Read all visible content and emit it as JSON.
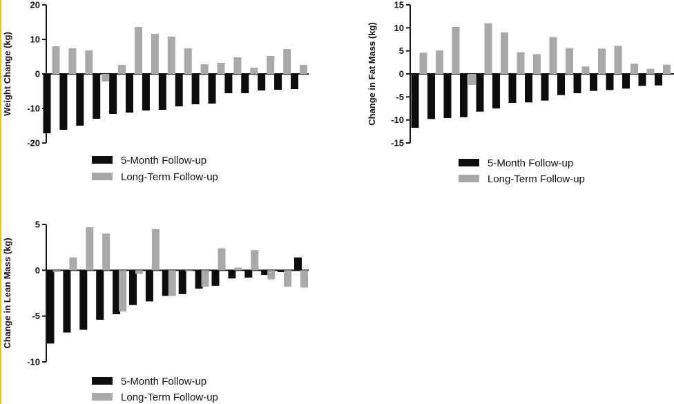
{
  "colors": {
    "five_month": "#0d0d0d",
    "long_term": "#a9a9a9",
    "axis": "#1a1a1a"
  },
  "chart_data": [
    {
      "type": "bar",
      "title": "",
      "xlabel": "",
      "ylabel": "Weight  Change (kg)",
      "ylim": [
        -20,
        20
      ],
      "yticks": [
        20,
        10,
        0,
        -10,
        -20
      ],
      "legend": {
        "position": "bottom",
        "entries": [
          "5-Month Follow-up",
          "Long-Term Follow-up"
        ]
      },
      "series": [
        {
          "name": "5-Month Follow-up",
          "values": [
            -17.2,
            -16.2,
            -15.0,
            -13.0,
            -11.6,
            -11.2,
            -10.6,
            -10.4,
            -9.4,
            -8.8,
            -8.6,
            -5.6,
            -5.6,
            -4.8,
            -4.6,
            -4.4
          ]
        },
        {
          "name": "Long-Term Follow-up",
          "values": [
            8.0,
            7.4,
            6.8,
            -2.2,
            2.6,
            13.6,
            11.6,
            10.8,
            7.4,
            2.8,
            3.2,
            4.8,
            1.8,
            5.2,
            7.2,
            2.6
          ]
        }
      ]
    },
    {
      "type": "bar",
      "title": "",
      "xlabel": "",
      "ylabel": "Change in Fat Mass (kg)",
      "ylim": [
        -15,
        15
      ],
      "yticks": [
        15,
        10,
        5,
        0,
        -5,
        -10,
        -15
      ],
      "legend": {
        "position": "bottom",
        "entries": [
          "5-Month Follow-up",
          "Long-Term Follow-up"
        ]
      },
      "series": [
        {
          "name": "5-Month Follow-up",
          "values": [
            -11.7,
            -9.8,
            -9.6,
            -9.4,
            -8.2,
            -7.5,
            -6.3,
            -6.2,
            -5.8,
            -4.6,
            -4.2,
            -3.7,
            -3.5,
            -3.2,
            -2.6,
            -2.5
          ]
        },
        {
          "name": "Long-Term Follow-up",
          "values": [
            4.6,
            5.1,
            10.2,
            -2.4,
            11.0,
            9.0,
            4.7,
            4.3,
            8.0,
            5.6,
            1.6,
            5.5,
            6.1,
            2.2,
            1.1,
            2.0
          ]
        }
      ]
    },
    {
      "type": "bar",
      "title": "",
      "xlabel": "",
      "ylabel": "Change in Lean Mass (kg)",
      "ylim": [
        -10,
        5
      ],
      "yticks": [
        5,
        0,
        -5,
        -10
      ],
      "legend": {
        "position": "bottom",
        "entries": [
          "5-Month Follow-up",
          "Long-Term Follow-up"
        ]
      },
      "series": [
        {
          "name": "5-Month Follow-up",
          "values": [
            -8.0,
            -6.8,
            -6.5,
            -5.4,
            -4.8,
            -3.8,
            -3.4,
            -2.8,
            -2.6,
            -2.0,
            -1.7,
            -0.9,
            -0.8,
            -0.5,
            -0.2,
            1.4
          ]
        },
        {
          "name": "Long-Term Follow-up",
          "values": [
            -0.2,
            1.4,
            4.7,
            4.0,
            -4.5,
            -0.4,
            4.5,
            -2.8,
            -0.1,
            -1.8,
            2.4,
            0.3,
            2.2,
            -1.0,
            -1.8,
            -1.9
          ]
        }
      ]
    }
  ]
}
